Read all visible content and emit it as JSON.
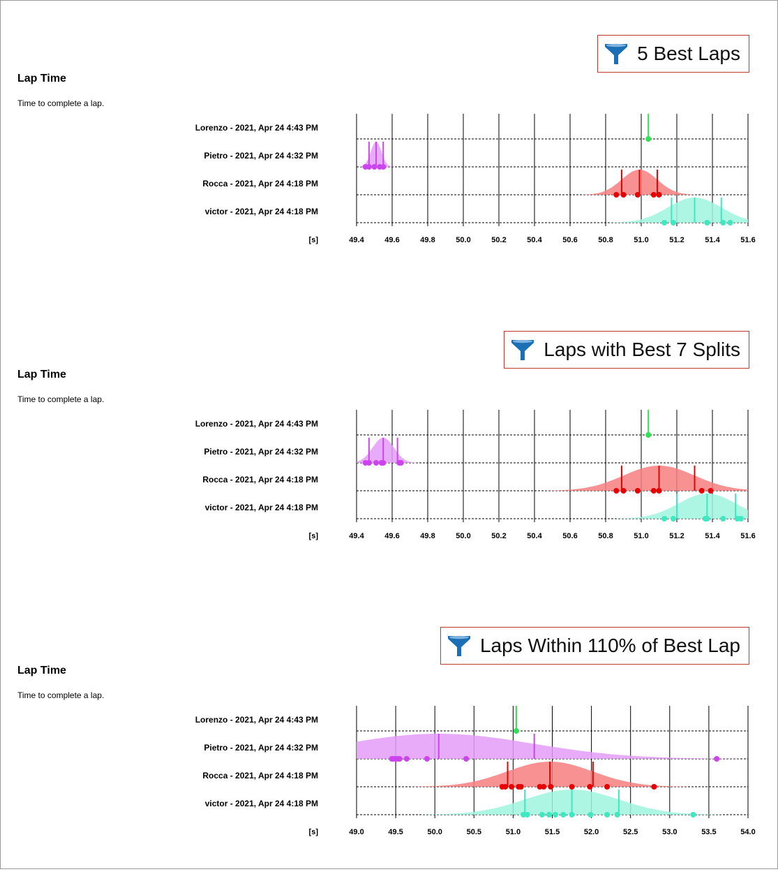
{
  "panels": [
    {
      "filter_label": "5 Best Laps",
      "filter_icon": "funnel-icon",
      "title": "Lap Time",
      "subtitle": "Time to complete a lap."
    },
    {
      "filter_label": "Laps with Best 7 Splits",
      "filter_icon": "funnel-icon",
      "title": "Lap Time",
      "subtitle": "Time to complete a lap."
    },
    {
      "filter_label": "Laps Within 110% of Best Lap",
      "filter_icon": "funnel-icon",
      "title": "Lap Time",
      "subtitle": "Time to complete a lap."
    }
  ],
  "colors": {
    "Lorenzo": "#33dd55",
    "Pietro": "#cc44ee",
    "Pietro_fill": "#e39cf8",
    "Rocca": "#e60000",
    "Rocca_fill": "#f77f7f",
    "victor": "#3ee8c0",
    "victor_fill": "#9ff5df",
    "filter_border": "#c0392b",
    "funnel": "#1a6fb5"
  },
  "chart_data": [
    {
      "type": "scatter",
      "unit_label": "[s]",
      "xlim": [
        49.4,
        51.6
      ],
      "xticks": [
        "49.4",
        "49.6",
        "49.8",
        "50.0",
        "50.2",
        "50.4",
        "50.6",
        "50.8",
        "51.0",
        "51.2",
        "51.4",
        "51.6"
      ],
      "grid": true,
      "series": [
        {
          "name": "Lorenzo - 2021, Apr 24 4:43 PM",
          "key": "Lorenzo",
          "points": [
            51.04
          ],
          "mean": 51.04,
          "sd": 0,
          "lines": [
            51.04
          ]
        },
        {
          "name": "Pietro - 2021, Apr 24 4:32 PM",
          "key": "Pietro",
          "points": [
            49.45,
            49.47,
            49.5,
            49.53,
            49.55
          ],
          "mean": 49.51,
          "sd": 0.03,
          "lines": [
            49.47,
            49.51,
            49.55
          ]
        },
        {
          "name": "Rocca - 2021, Apr 24 4:18 PM",
          "key": "Rocca",
          "points": [
            50.86,
            50.9,
            50.98,
            51.07,
            51.1
          ],
          "mean": 50.99,
          "sd": 0.1,
          "lines": [
            50.89,
            50.99,
            51.09
          ]
        },
        {
          "name": "victor - 2021, Apr 24 4:18 PM",
          "key": "victor",
          "points": [
            51.13,
            51.18,
            51.37,
            51.46,
            51.5
          ],
          "mean": 51.3,
          "sd": 0.15,
          "lines": [
            51.17,
            51.3,
            51.45
          ]
        }
      ]
    },
    {
      "type": "scatter",
      "unit_label": "[s]",
      "xlim": [
        49.4,
        51.6
      ],
      "xticks": [
        "49.4",
        "49.6",
        "49.8",
        "50.0",
        "50.2",
        "50.4",
        "50.6",
        "50.8",
        "51.0",
        "51.2",
        "51.4",
        "51.6"
      ],
      "grid": true,
      "series": [
        {
          "name": "Lorenzo - 2021, Apr 24 4:43 PM",
          "key": "Lorenzo",
          "points": [
            51.04
          ],
          "mean": 51.04,
          "sd": 0,
          "lines": [
            51.04
          ]
        },
        {
          "name": "Pietro - 2021, Apr 24 4:32 PM",
          "key": "Pietro",
          "points": [
            49.45,
            49.47,
            49.51,
            49.54,
            49.55,
            49.64,
            49.65
          ],
          "mean": 49.55,
          "sd": 0.06,
          "lines": [
            49.47,
            49.55,
            49.63
          ]
        },
        {
          "name": "Rocca - 2021, Apr 24 4:18 PM",
          "key": "Rocca",
          "points": [
            50.86,
            50.9,
            50.98,
            51.07,
            51.1,
            51.34,
            51.39
          ],
          "mean": 51.1,
          "sd": 0.2,
          "lines": [
            50.89,
            51.1,
            51.3
          ]
        },
        {
          "name": "victor - 2021, Apr 24 4:18 PM",
          "key": "victor",
          "points": [
            51.13,
            51.18,
            51.36,
            51.37,
            51.46,
            51.54,
            51.56
          ],
          "mean": 51.37,
          "sd": 0.16,
          "lines": [
            51.2,
            51.37,
            51.53
          ]
        }
      ]
    },
    {
      "type": "scatter",
      "unit_label": "[s]",
      "xlim": [
        49.0,
        54.0
      ],
      "xticks": [
        "49.0",
        "49.5",
        "50.0",
        "50.5",
        "51.0",
        "51.5",
        "52.0",
        "52.5",
        "53.0",
        "53.5",
        "54.0"
      ],
      "grid": true,
      "series": [
        {
          "name": "Lorenzo - 2021, Apr 24 4:43 PM",
          "key": "Lorenzo",
          "points": [
            51.04
          ],
          "mean": 51.04,
          "sd": 0,
          "lines": [
            51.04
          ]
        },
        {
          "name": "Pietro - 2021, Apr 24 4:32 PM",
          "key": "Pietro",
          "points": [
            49.45,
            49.47,
            49.5,
            49.53,
            49.55,
            49.64,
            49.9,
            50.4,
            53.6
          ],
          "mean": 50.05,
          "sd": 1.2,
          "lines": [
            50.05,
            51.27
          ]
        },
        {
          "name": "Rocca - 2021, Apr 24 4:18 PM",
          "key": "Rocca",
          "points": [
            50.86,
            50.9,
            50.98,
            51.07,
            51.1,
            51.34,
            51.39,
            51.48,
            51.75,
            51.98,
            52.2,
            52.8
          ],
          "mean": 51.47,
          "sd": 0.55,
          "lines": [
            50.93,
            51.47,
            52.02
          ]
        },
        {
          "name": "victor - 2021, Apr 24 4:18 PM",
          "key": "victor",
          "points": [
            51.13,
            51.18,
            51.37,
            51.46,
            51.54,
            51.64,
            51.75,
            51.99,
            52.2,
            52.33,
            53.3
          ],
          "mean": 51.75,
          "sd": 0.6,
          "lines": [
            51.15,
            51.75,
            52.35
          ]
        }
      ]
    }
  ]
}
